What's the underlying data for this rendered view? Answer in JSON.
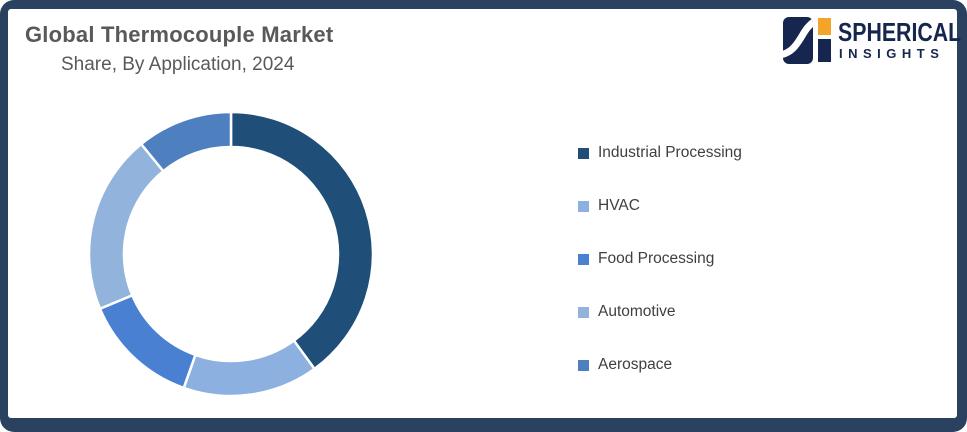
{
  "header": {
    "title": "Global Thermocouple Market",
    "subtitle": "Share, By Application, 2024"
  },
  "brand": {
    "name": "SPHERICAL",
    "subname": "INSIGHTS",
    "navy": "#17264F",
    "orange": "#F4A428"
  },
  "palette": {
    "frame_border": "#2A4260",
    "card_background": "#FFFFFF",
    "title_text": "#595959",
    "legend_text": "#3F3F3F"
  },
  "chart_data": {
    "type": "pie",
    "variant": "doughnut",
    "title": "Global Thermocouple Market Share, By Application, 2024",
    "categories": [
      "Industrial Processing",
      "HVAC",
      "Food Processing",
      "Automotive",
      "Aerospace"
    ],
    "values": [
      40,
      15.4,
      13.3,
      20.4,
      10.9
    ],
    "values_note": "percent share estimated from arc angles; chart shows no numeric data labels",
    "colors": [
      "#1F4E79",
      "#8CB0E0",
      "#4A80D1",
      "#92B4DC",
      "#4E7FBE"
    ],
    "start_angle_deg": 0,
    "direction": "clockwise",
    "outer_radius_px": 142,
    "inner_radius_ratio": 0.75,
    "segment_gap_color": "#FFFFFF",
    "legend_position": "right",
    "data_labels": false
  },
  "legend": {
    "items": [
      {
        "label": "Industrial Processing",
        "color": "#1F4E79"
      },
      {
        "label": "HVAC",
        "color": "#8CB0E0"
      },
      {
        "label": "Food Processing",
        "color": "#4A80D1"
      },
      {
        "label": "Automotive",
        "color": "#92B4DC"
      },
      {
        "label": "Aerospace",
        "color": "#4E7FBE"
      }
    ]
  }
}
